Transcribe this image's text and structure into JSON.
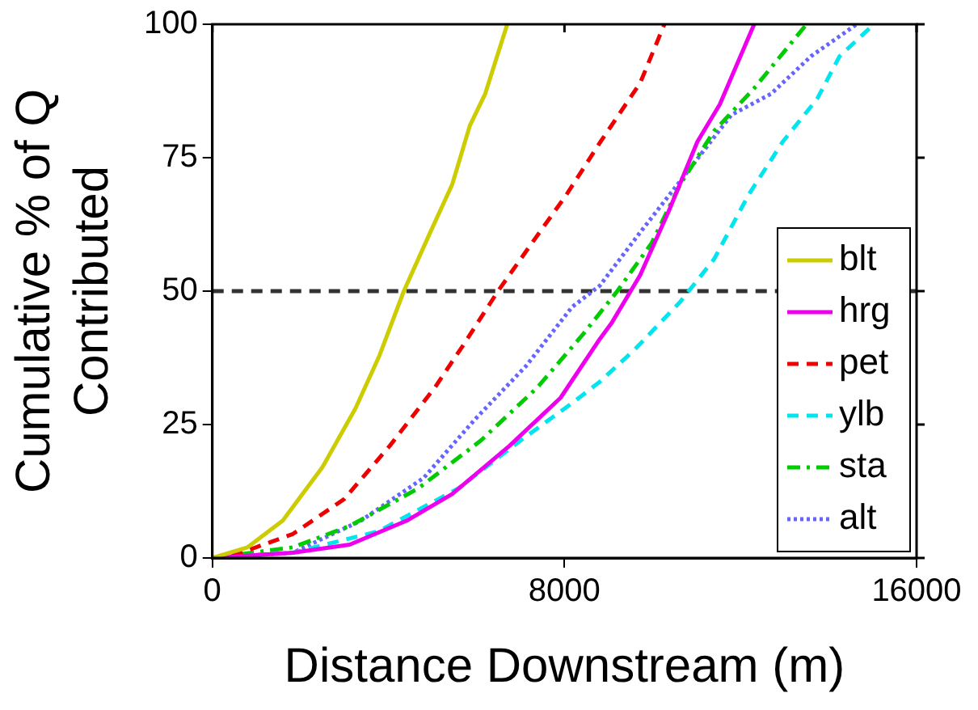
{
  "chart_data": {
    "type": "line",
    "xlabel": "Distance Downstream (m)",
    "ylabel": "Cumulative % of Q\nContributed",
    "xlim": [
      0,
      16000
    ],
    "xticks": [
      0,
      8000,
      16000
    ],
    "ylim": [
      0,
      100
    ],
    "yticks": [
      0,
      25,
      50,
      75,
      100
    ],
    "grid": false,
    "legend": "right",
    "marker": "none",
    "ref_lines": [
      {
        "axis": "y",
        "value": 50,
        "color": "#333333",
        "line_style": "dashed"
      }
    ],
    "series": [
      {
        "name": "blt",
        "color": "#cccc00",
        "line_style": "solid",
        "x": [
          0,
          800,
          1600,
          2500,
          3250,
          3800,
          4350,
          4950,
          5450,
          5850,
          6200,
          6700
        ],
        "values": [
          0,
          2,
          7,
          17,
          28,
          38,
          50,
          61,
          70,
          81,
          87,
          100
        ]
      },
      {
        "name": "hrg",
        "color": "#ee00ee",
        "line_style": "solid",
        "x": [
          0,
          1830,
          3120,
          4420,
          5450,
          6750,
          7910,
          8800,
          9070,
          9720,
          10370,
          11020,
          11530,
          12310
        ],
        "values": [
          0,
          1,
          2.5,
          7,
          12,
          21,
          30,
          41,
          44,
          53,
          65,
          78,
          85,
          100
        ]
      },
      {
        "name": "pet",
        "color": "#ee0000",
        "line_style": "dashed",
        "x": [
          0,
          660,
          1830,
          2990,
          4030,
          5060,
          5710,
          6490,
          7260,
          8040,
          8820,
          9720,
          10270
        ],
        "values": [
          0,
          1,
          4.5,
          11,
          21,
          32,
          40,
          50,
          59,
          68,
          78,
          89,
          100
        ]
      },
      {
        "name": "ylb",
        "color": "#00e5ee",
        "line_style": "dashed",
        "x": [
          0,
          1830,
          3770,
          5580,
          7000,
          8170,
          8800,
          9590,
          10630,
          11400,
          12180,
          12960,
          13740,
          14250,
          15030
        ],
        "values": [
          0,
          1,
          5,
          13,
          22,
          29,
          33,
          39,
          48,
          56,
          68,
          78,
          86,
          94,
          100
        ]
      },
      {
        "name": "sta",
        "color": "#00cc00",
        "line_style": "dashdot",
        "x": [
          0,
          1830,
          3120,
          4670,
          6100,
          7390,
          8430,
          9200,
          9980,
          10630,
          11400,
          12310,
          13500
        ],
        "values": [
          0,
          2,
          6,
          13,
          22,
          32,
          42,
          50,
          59,
          70,
          80,
          88,
          100
        ]
      },
      {
        "name": "alt",
        "color": "#6666ff",
        "line_style": "dotted",
        "x": [
          0,
          1830,
          3380,
          4800,
          5970,
          7130,
          8170,
          8800,
          9720,
          10760,
          11790,
          12700,
          13600,
          14640
        ],
        "values": [
          0,
          1,
          7,
          15,
          26,
          36,
          47,
          51,
          61,
          72,
          83,
          87,
          94,
          100
        ]
      }
    ]
  }
}
